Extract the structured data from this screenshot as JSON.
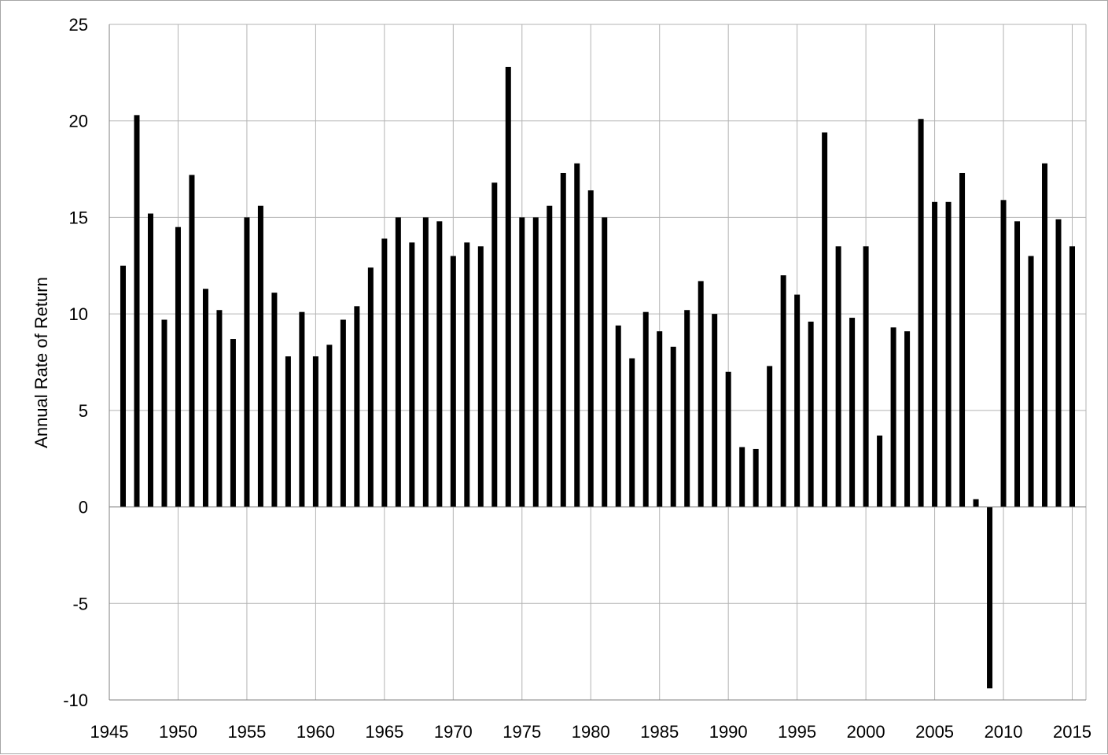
{
  "chart_data": {
    "type": "bar",
    "title": "",
    "xlabel": "",
    "ylabel": "Annual Rate of Return",
    "xlim": [
      1945,
      2016
    ],
    "ylim": [
      -10,
      25
    ],
    "x_ticks": [
      1945,
      1950,
      1955,
      1960,
      1965,
      1970,
      1975,
      1980,
      1985,
      1990,
      1995,
      2000,
      2005,
      2010,
      2015
    ],
    "y_ticks": [
      25,
      20,
      15,
      10,
      5,
      0,
      -5,
      -10
    ],
    "grid": true,
    "legend": "none",
    "bar_color": "#000000",
    "grid_color": "#b3b3b3",
    "x": [
      1946,
      1947,
      1948,
      1949,
      1950,
      1951,
      1952,
      1953,
      1954,
      1955,
      1956,
      1957,
      1958,
      1959,
      1960,
      1961,
      1962,
      1963,
      1964,
      1965,
      1966,
      1967,
      1968,
      1969,
      1970,
      1971,
      1972,
      1973,
      1974,
      1975,
      1976,
      1977,
      1978,
      1979,
      1980,
      1981,
      1982,
      1983,
      1984,
      1985,
      1986,
      1987,
      1988,
      1989,
      1990,
      1991,
      1992,
      1993,
      1994,
      1995,
      1996,
      1997,
      1998,
      1999,
      2000,
      2001,
      2002,
      2003,
      2004,
      2005,
      2006,
      2007,
      2008,
      2009,
      2010,
      2011,
      2012,
      2013,
      2014,
      2015
    ],
    "values": [
      12.5,
      20.3,
      15.2,
      9.7,
      14.5,
      17.2,
      11.3,
      10.2,
      8.7,
      15.0,
      15.6,
      11.1,
      7.8,
      10.1,
      7.8,
      8.4,
      9.7,
      10.4,
      12.4,
      13.9,
      15.0,
      13.7,
      15.0,
      14.8,
      13.0,
      13.7,
      13.5,
      16.8,
      22.8,
      15.0,
      15.0,
      15.6,
      17.3,
      17.8,
      16.4,
      15.0,
      9.4,
      7.7,
      10.1,
      9.1,
      8.3,
      10.2,
      11.7,
      10.0,
      7.0,
      3.1,
      3.0,
      7.3,
      12.0,
      11.0,
      9.6,
      19.4,
      13.5,
      9.8,
      13.5,
      3.7,
      9.3,
      9.1,
      20.1,
      15.8,
      15.8,
      17.3,
      0.4,
      -9.4,
      15.9,
      14.8,
      13.0,
      17.8,
      14.9,
      13.5
    ]
  }
}
